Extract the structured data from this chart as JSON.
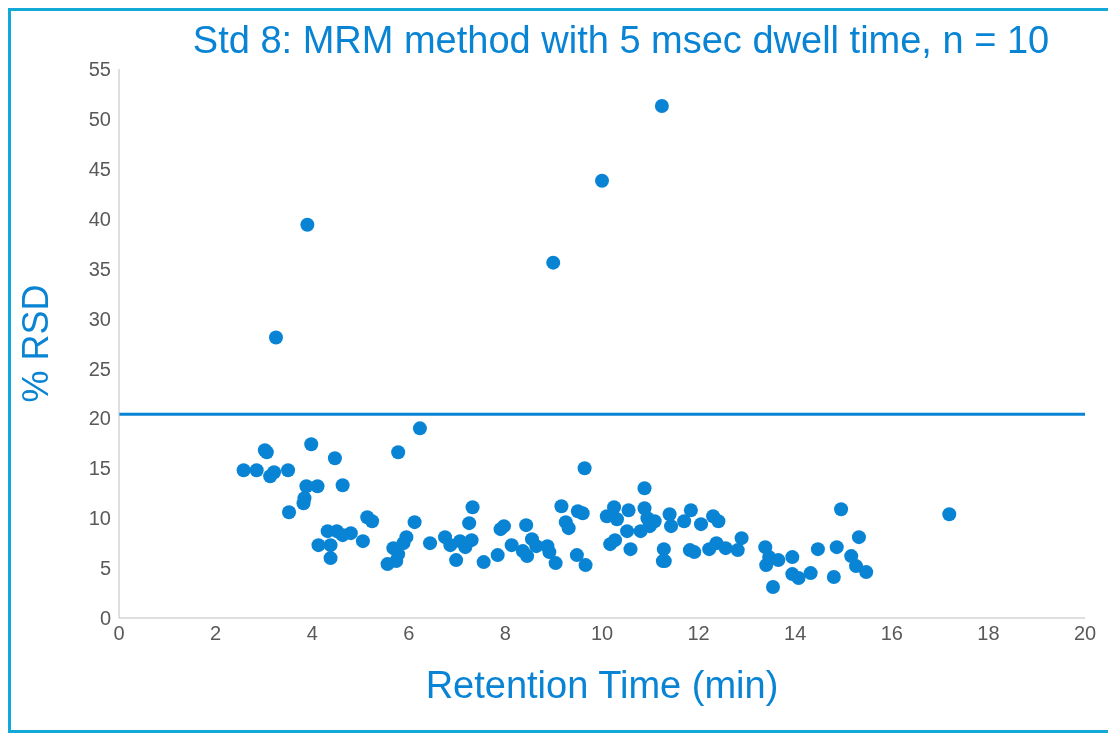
{
  "chart_data": {
    "type": "scatter",
    "title": "Std 8: MRM method with 5 msec dwell time, n = 10",
    "xlabel": "Retention Time (min)",
    "ylabel": "% RSD",
    "xlim": [
      0,
      20
    ],
    "xticks": [
      0,
      2,
      4,
      6,
      8,
      10,
      12,
      14,
      16,
      18,
      20
    ],
    "ylim": [
      0,
      55
    ],
    "yticks": [
      0,
      5,
      10,
      15,
      20,
      25,
      30,
      35,
      40,
      45,
      50,
      55
    ],
    "marker": "circle",
    "color": "#0984d4",
    "ref_lines": [
      {
        "axis": "y",
        "value": 20.4,
        "color": "#0984d4"
      }
    ],
    "x": [
      2.58,
      2.85,
      3.02,
      3.06,
      3.13,
      3.21,
      3.25,
      3.5,
      3.52,
      3.82,
      3.84,
      3.88,
      3.9,
      3.98,
      4.11,
      4.13,
      4.32,
      4.38,
      4.38,
      4.47,
      4.51,
      4.63,
      4.63,
      4.8,
      5.05,
      5.14,
      5.24,
      5.56,
      5.68,
      5.74,
      5.78,
      5.78,
      5.89,
      5.95,
      6.12,
      6.23,
      6.44,
      6.75,
      6.86,
      6.98,
      7.06,
      7.17,
      7.25,
      7.32,
      7.3,
      7.55,
      7.84,
      7.9,
      7.97,
      8.13,
      8.36,
      8.43,
      8.45,
      8.55,
      8.64,
      8.87,
      8.91,
      8.99,
      9.04,
      9.16,
      9.25,
      9.31,
      9.48,
      9.5,
      9.6,
      9.64,
      9.66,
      10.0,
      10.1,
      10.17,
      10.25,
      10.31,
      10.27,
      10.52,
      10.55,
      10.59,
      10.8,
      10.88,
      10.88,
      10.94,
      10.99,
      11.09,
      11.24,
      11.26,
      11.28,
      11.3,
      11.4,
      11.43,
      11.7,
      11.84,
      11.82,
      11.91,
      12.05,
      12.22,
      12.3,
      12.37,
      12.41,
      12.56,
      12.81,
      12.89,
      13.38,
      13.4,
      13.46,
      13.54,
      13.65,
      13.94,
      13.94,
      14.07,
      14.32,
      14.47,
      14.8,
      14.86,
      14.95,
      15.16,
      15.26,
      15.32,
      15.47,
      17.19
    ],
    "values": [
      14.8,
      14.8,
      16.8,
      16.6,
      14.2,
      14.6,
      28.1,
      14.8,
      10.6,
      11.5,
      12.0,
      13.2,
      39.4,
      17.4,
      13.2,
      7.3,
      8.7,
      6.0,
      7.3,
      16.0,
      8.7,
      8.3,
      13.3,
      8.5,
      7.7,
      10.1,
      9.7,
      5.4,
      7.0,
      5.7,
      6.4,
      16.6,
      7.5,
      8.1,
      9.6,
      19.0,
      7.5,
      8.1,
      7.3,
      5.8,
      7.7,
      7.1,
      9.5,
      11.1,
      7.8,
      5.6,
      6.3,
      8.9,
      9.2,
      7.3,
      6.7,
      9.3,
      6.2,
      7.9,
      7.2,
      7.2,
      6.6,
      35.6,
      5.5,
      11.2,
      9.6,
      9.0,
      6.3,
      10.7,
      10.5,
      15.0,
      5.3,
      43.8,
      10.2,
      7.4,
      11.1,
      9.9,
      7.8,
      8.7,
      10.8,
      6.9,
      8.7,
      13.0,
      11.0,
      10.0,
      9.2,
      9.7,
      51.3,
      5.7,
      6.9,
      5.7,
      10.4,
      9.2,
      9.7,
      10.8,
      6.8,
      6.6,
      9.4,
      6.9,
      10.2,
      7.5,
      9.7,
      7.0,
      6.8,
      8.0,
      7.1,
      5.3,
      6.1,
      3.1,
      5.8,
      6.1,
      4.4,
      4.0,
      4.5,
      6.9,
      4.1,
      7.1,
      10.9,
      6.2,
      5.2,
      8.1,
      4.6,
      10.4
    ]
  }
}
